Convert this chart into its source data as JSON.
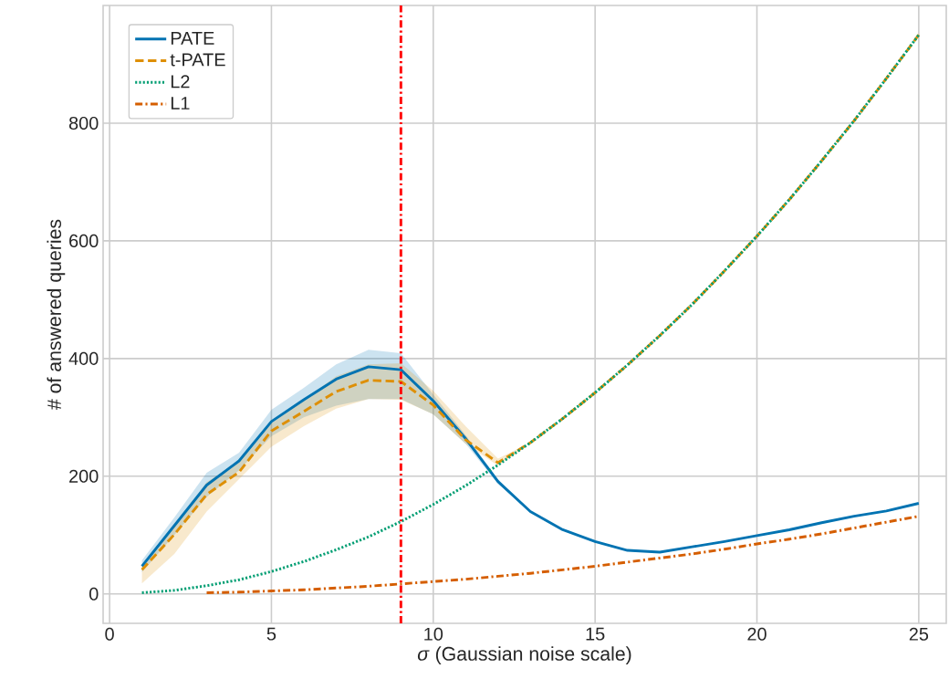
{
  "chart_data": {
    "type": "line",
    "xlabel": "*σ* (Gaussian noise scale)",
    "ylabel": "# of answered queries",
    "xlim": [
      -0.2,
      25.85
    ],
    "ylim": [
      -50,
      1000
    ],
    "xticks": [
      0,
      5,
      10,
      15,
      20,
      25
    ],
    "yticks": [
      0,
      200,
      400,
      600,
      800
    ],
    "grid": true,
    "legend": "top left",
    "marker": "none",
    "series": [
      {
        "name": "PATE",
        "color": "#0173b2",
        "line_style": "solid",
        "x": [
          1,
          2,
          3,
          4,
          5,
          6,
          7,
          8,
          9,
          10,
          11,
          12,
          13,
          14,
          15,
          16,
          17,
          18,
          19,
          20,
          21,
          22,
          23,
          24,
          25
        ],
        "values": [
          47,
          116,
          185,
          226,
          293,
          330,
          365,
          386,
          381,
          328,
          264,
          191,
          140,
          109,
          89,
          74,
          71,
          80,
          89,
          99,
          109,
          121,
          132,
          141,
          154
        ],
        "lower": [
          37,
          100,
          165,
          210,
          268,
          300,
          320,
          331,
          331,
          305,
          255,
          187,
          140,
          109,
          89,
          74,
          71,
          80,
          89,
          99,
          109,
          121,
          132,
          141,
          154
        ],
        "upper": [
          57,
          130,
          206,
          240,
          313,
          350,
          390,
          415,
          409,
          339,
          270,
          195,
          140,
          109,
          89,
          74,
          71,
          80,
          89,
          99,
          109,
          121,
          132,
          141,
          154
        ]
      },
      {
        "name": "t-PATE",
        "color": "#de8f05",
        "line_style": "dashed",
        "x": [
          1,
          2,
          3,
          4,
          5,
          6,
          7,
          8,
          9,
          10,
          11,
          12,
          13,
          14,
          15,
          16,
          17,
          18,
          19,
          20,
          21,
          22,
          23,
          24,
          25
        ],
        "values": [
          41,
          101,
          169,
          207,
          277,
          310,
          344,
          363,
          361,
          321,
          262,
          223,
          257,
          298,
          342,
          389,
          439,
          492,
          549,
          608,
          670,
          736,
          804,
          876,
          950
        ],
        "lower": [
          18,
          68,
          140,
          195,
          250,
          285,
          315,
          331,
          330,
          305,
          255,
          218,
          257,
          298,
          342,
          389,
          439,
          492,
          549,
          608,
          670,
          736,
          804,
          876,
          950
        ],
        "upper": [
          50,
          115,
          190,
          225,
          290,
          330,
          370,
          390,
          392,
          345,
          285,
          230,
          257,
          298,
          342,
          389,
          439,
          492,
          549,
          608,
          670,
          736,
          804,
          876,
          950
        ]
      },
      {
        "name": "L2",
        "color": "#029e73",
        "line_style": "dotted",
        "x": [
          1,
          2,
          3,
          4,
          5,
          6,
          7,
          8,
          9,
          10,
          11,
          12,
          13,
          14,
          15,
          16,
          17,
          18,
          19,
          20,
          21,
          22,
          23,
          24,
          25
        ],
        "values": [
          2,
          6,
          14,
          24,
          38,
          55,
          75,
          97,
          123,
          152,
          184,
          219,
          257,
          298,
          342,
          389,
          439,
          492,
          549,
          608,
          670,
          736,
          804,
          876,
          950
        ]
      },
      {
        "name": "L1",
        "color": "#d55e00",
        "line_style": "dashdot",
        "x": [
          3,
          4,
          5,
          6,
          7,
          8,
          9,
          10,
          11,
          12,
          13,
          14,
          15,
          16,
          17,
          18,
          19,
          20,
          21,
          22,
          23,
          24,
          25
        ],
        "values": [
          2,
          3,
          5,
          7,
          10,
          13,
          17,
          21,
          25,
          30,
          35,
          41,
          47,
          54,
          61,
          68,
          76,
          85,
          93,
          102,
          112,
          122,
          132
        ]
      }
    ],
    "ref_lines": [
      {
        "axis": "x",
        "value": 9,
        "color": "#ff0000",
        "line_style": "dashdot"
      }
    ]
  }
}
